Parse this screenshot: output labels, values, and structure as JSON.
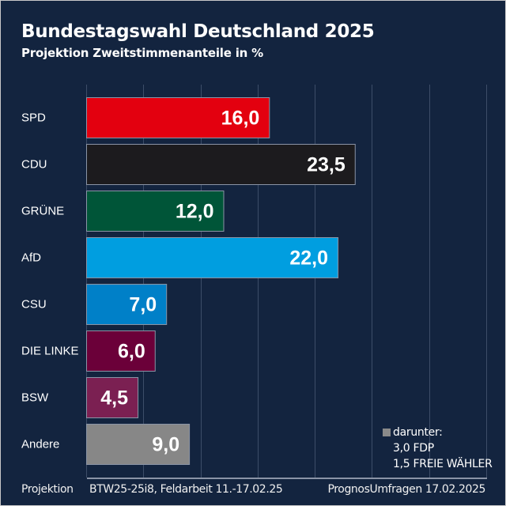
{
  "chart_data": {
    "type": "bar",
    "orientation": "horizontal",
    "title": "Bundestagswahl Deutschland 2025",
    "subtitle": "Projektion Zweitstimmenanteile in %",
    "xlabel": "",
    "ylabel": "",
    "xlim": [
      0,
      35
    ],
    "grid": true,
    "grid_step": 5,
    "categories": [
      "SPD",
      "CDU",
      "GRÜNE",
      "AfD",
      "CSU",
      "DIE LINKE",
      "BSW",
      "Andere"
    ],
    "values": [
      16.0,
      23.5,
      12.0,
      22.0,
      7.0,
      6.0,
      4.5,
      9.0
    ],
    "value_labels": [
      "16,0",
      "23,5",
      "12,0",
      "22,0",
      "7,0",
      "6,0",
      "4,5",
      "9,0"
    ],
    "colors": [
      "#e3000f",
      "#1c1b1e",
      "#005538",
      "#009ee0",
      "#0080c8",
      "#6b0039",
      "#7b2052",
      "#878787"
    ],
    "annotation": {
      "heading": "darunter:",
      "items": [
        "3,0 FDP",
        "1,5 FREIE WÄHLER"
      ],
      "swatch_color": "#878787"
    }
  },
  "footer": {
    "left": "Projektion",
    "middle": "BTW25-25i8, Feldarbeit 11.-17.02.25",
    "right": "PrognosUmfragen 17.02.2025"
  }
}
